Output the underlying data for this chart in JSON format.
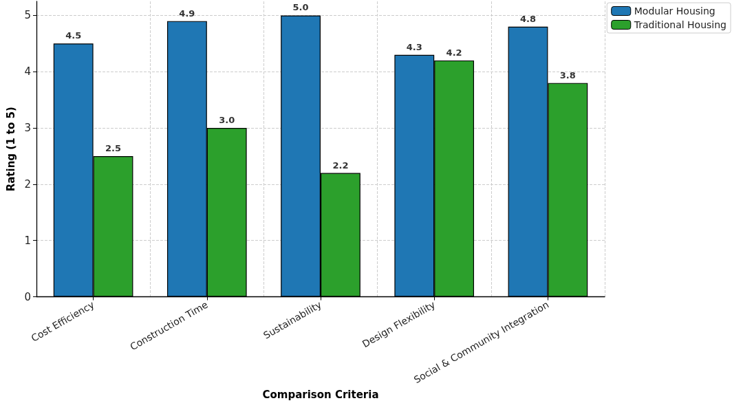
{
  "chart_data": {
    "type": "bar",
    "xlabel": "Comparison Criteria",
    "ylabel": "Rating (1 to 5)",
    "categories": [
      "Cost Efficiency",
      "Construction Time",
      "Sustainability",
      "Design Flexibility",
      "Social & Community Integration"
    ],
    "series": [
      {
        "name": "Modular Housing",
        "color": "#1f77b4",
        "values": [
          4.5,
          4.9,
          5.0,
          4.3,
          4.8
        ],
        "value_labels": [
          "4.5",
          "4.9",
          "5.0",
          "4.3",
          "4.8"
        ]
      },
      {
        "name": "Traditional Housing",
        "color": "#2ca02c",
        "values": [
          2.5,
          3.0,
          2.2,
          4.2,
          3.8
        ],
        "value_labels": [
          "2.5",
          "3.0",
          "2.2",
          "4.2",
          "3.8"
        ]
      }
    ],
    "ylim": [
      0,
      5.25
    ],
    "yticks": [
      0,
      1,
      2,
      3,
      4,
      5
    ],
    "grid": true,
    "legend": "top right"
  }
}
